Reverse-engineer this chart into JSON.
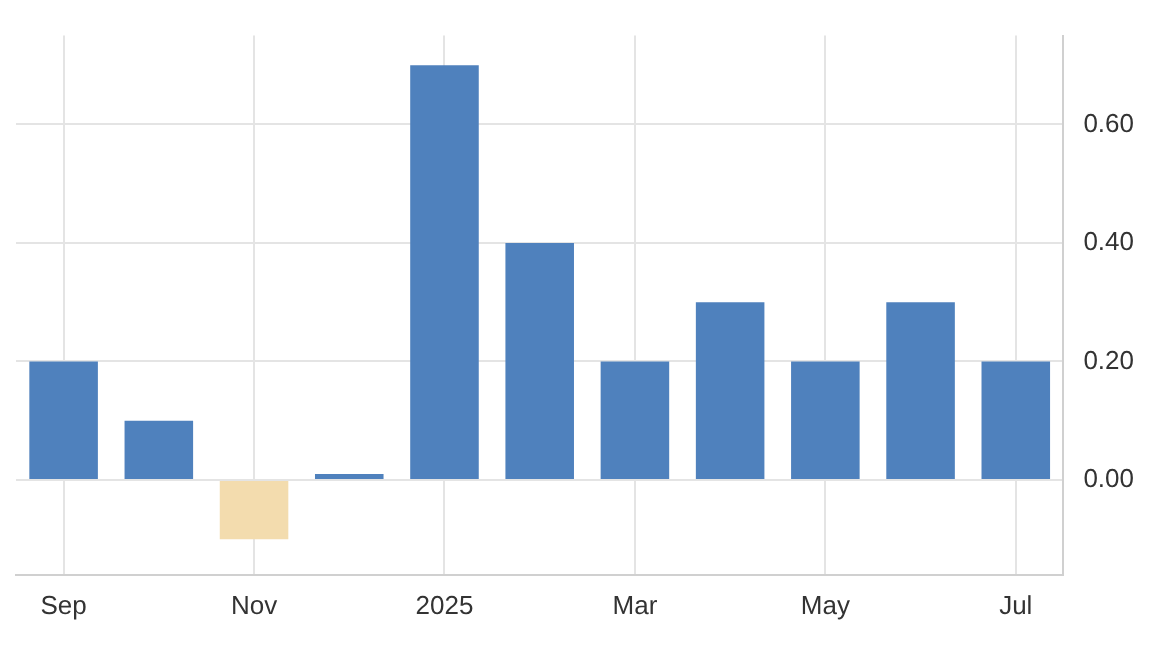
{
  "chart_data": {
    "type": "bar",
    "categories": [
      "Sep",
      null,
      "Nov",
      null,
      "2025",
      null,
      "Mar",
      null,
      "May",
      null,
      "Jul"
    ],
    "values": [
      0.2,
      0.1,
      -0.1,
      0.01,
      0.7,
      0.4,
      0.2,
      0.3,
      0.2,
      0.3,
      0.2
    ],
    "colors": [
      "#4f81bd",
      "#4f81bd",
      "#f3dcae",
      "#4f81bd",
      "#4f81bd",
      "#4f81bd",
      "#4f81bd",
      "#4f81bd",
      "#4f81bd",
      "#4f81bd",
      "#4f81bd"
    ],
    "ylim": [
      -0.16,
      0.75
    ],
    "yticks": [
      {
        "value": 0,
        "label": "0.00"
      },
      {
        "value": 0.2,
        "label": "0.20"
      },
      {
        "value": 0.4,
        "label": "0.40"
      },
      {
        "value": 0.6,
        "label": "0.60"
      }
    ],
    "grid": true
  }
}
